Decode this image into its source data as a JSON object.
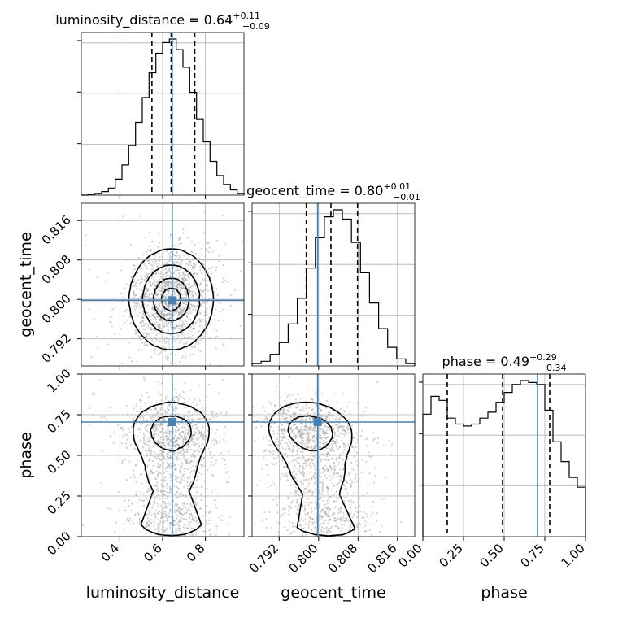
{
  "chart_data": {
    "type": "corner",
    "parameters": [
      "luminosity_distance",
      "geocent_time",
      "phase"
    ],
    "truths": [
      0.645,
      0.7998,
      0.705
    ],
    "truth_color": "#4682b4",
    "histogram_color": "#000000",
    "grid": true,
    "panels": {
      "luminosity_distance": {
        "title_name": "luminosity_distance",
        "median": "0.64",
        "plus": "+0.11",
        "minus": "−0.09",
        "quantiles": [
          0.55,
          0.64,
          0.75
        ],
        "xlim": [
          0.22,
          0.98
        ],
        "xticks": [
          0.4,
          0.6,
          0.8
        ],
        "xtick_labels": [
          "0.4",
          "0.6",
          "0.8"
        ],
        "hist_bins": [
          0.22,
          0.98
        ],
        "hist_counts": [
          0,
          0.5,
          1,
          2,
          4,
          9,
          17,
          28,
          41,
          55,
          69,
          80,
          86,
          88,
          82,
          72,
          58,
          43,
          30,
          19,
          11,
          6,
          3,
          1
        ]
      },
      "geocent_time": {
        "title_name": "geocent_time",
        "median": "0.80",
        "plus": "+0.01",
        "minus": "−0.01",
        "quantiles": [
          0.7975,
          0.8025,
          0.8079
        ],
        "xlim": [
          0.7865,
          0.8195
        ],
        "xticks": [
          0.792,
          0.8,
          0.808,
          0.816
        ],
        "xtick_labels": [
          "0.792",
          "0.800",
          "0.808",
          "0.816"
        ],
        "hist_bins": [
          0.7865,
          0.8195
        ],
        "hist_counts": [
          1,
          2,
          5,
          10,
          18,
          29,
          42,
          55,
          64,
          67,
          63,
          53,
          40,
          27,
          16,
          8,
          3,
          1
        ]
      },
      "phase": {
        "title_name": "phase",
        "median": "0.49",
        "plus": "+0.29",
        "minus": "−0.34",
        "quantiles": [
          0.15,
          0.49,
          0.78
        ],
        "xlim": [
          0.0,
          1.0
        ],
        "xticks": [
          0.0,
          0.25,
          0.5,
          0.75,
          1.0
        ],
        "xtick_labels": [
          "0.00",
          "0.25",
          "0.50",
          "0.75",
          "1.00"
        ],
        "hist_bins": [
          0.0,
          1.0
        ],
        "hist_counts": [
          62,
          71,
          69,
          60,
          57,
          56,
          57,
          60,
          63,
          68,
          73,
          77,
          79,
          78,
          77,
          64,
          48,
          38,
          30,
          25
        ]
      }
    },
    "pairs": [
      {
        "x": "luminosity_distance",
        "y": "geocent_time",
        "yticks": [
          0.792,
          0.8,
          0.808,
          0.816
        ],
        "ytick_labels": [
          "0.792",
          "0.800",
          "0.808",
          "0.816"
        ],
        "ylim": [
          0.7865,
          0.8195
        ]
      },
      {
        "x": "luminosity_distance",
        "y": "phase",
        "yticks": [
          0.0,
          0.25,
          0.5,
          0.75,
          1.0
        ],
        "ytick_labels": [
          "0.00",
          "0.25",
          "0.50",
          "0.75",
          "1.00"
        ],
        "ylim": [
          0.0,
          1.0
        ]
      },
      {
        "x": "geocent_time",
        "y": "phase",
        "ylim": [
          0.0,
          1.0
        ]
      }
    ]
  }
}
